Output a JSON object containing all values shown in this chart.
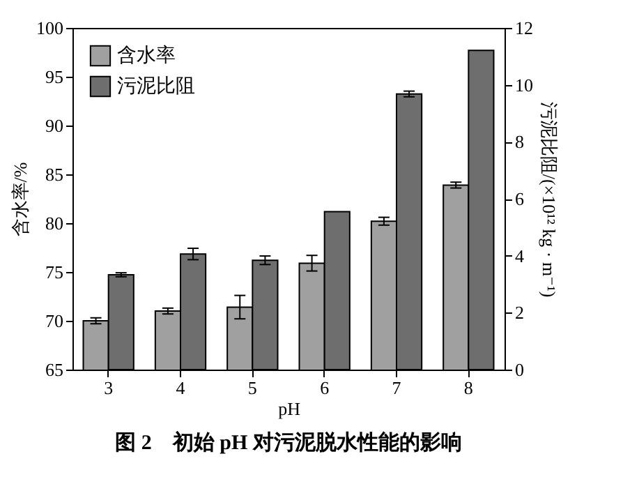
{
  "chart_data": {
    "type": "bar",
    "title": "图 2　初始 pH 对污泥脱水性能的影响",
    "xlabel": "pH",
    "ylabel": "含水率/%",
    "y2label": "污泥比阻/(×10¹² kg · m⁻¹)",
    "categories": [
      "3",
      "4",
      "5",
      "6",
      "7",
      "8"
    ],
    "series": [
      {
        "name": "含水率",
        "color": "#a0a0a0",
        "values": [
          70.0,
          71.0,
          71.4,
          75.9,
          80.2,
          83.9
        ],
        "errors": [
          0.3,
          0.3,
          1.2,
          0.8,
          0.4,
          0.3
        ]
      },
      {
        "name": "污泥比阻",
        "color": "#6e6e6e",
        "axis": "y2",
        "values": [
          3.33,
          4.06,
          3.84,
          5.55,
          9.68,
          11.21
        ],
        "errors": [
          0.07,
          0.2,
          0.15,
          null,
          0.1,
          null
        ]
      }
    ],
    "ylim": [
      65,
      100
    ],
    "yticks": [
      65,
      70,
      75,
      80,
      85,
      90,
      95,
      100
    ],
    "y2lim": [
      0,
      12
    ],
    "y2ticks": [
      0,
      2,
      4,
      6,
      8,
      10,
      12
    ],
    "grid": false,
    "legend": "top left"
  }
}
